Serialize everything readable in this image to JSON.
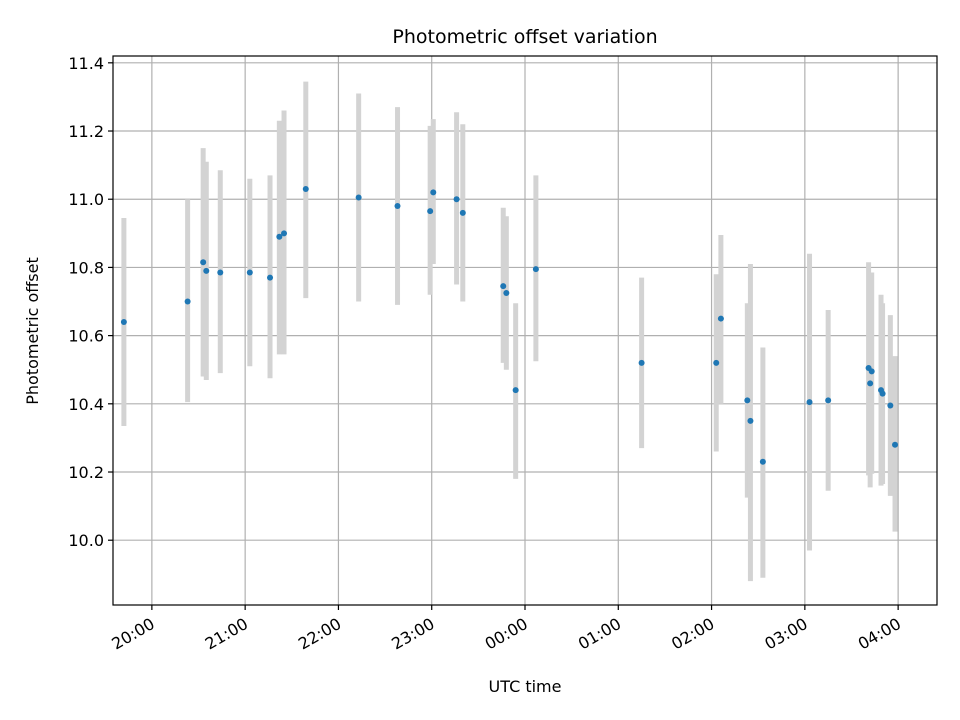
{
  "chart_data": {
    "type": "scatter",
    "title": "Photometric offset variation",
    "xlabel": "UTC time",
    "ylabel": "Photometric offset",
    "x_unit": "UTC time (hours, continuing past midnight)",
    "xlim": [
      "19:35",
      "04:25"
    ],
    "ylim": [
      9.81,
      11.42
    ],
    "x_ticks": [
      "20:00",
      "21:00",
      "22:00",
      "23:00",
      "00:00",
      "01:00",
      "02:00",
      "03:00",
      "04:00"
    ],
    "y_ticks": [
      "10.0",
      "10.2",
      "10.4",
      "10.6",
      "10.8",
      "11.0",
      "11.2",
      "11.4"
    ],
    "grid": true,
    "series": [
      {
        "marker_color": "#1f77b4",
        "errorbar_color": "#d3d3d3",
        "points": [
          {
            "x": "19:42",
            "y": 10.64,
            "err_low": 10.335,
            "err_high": 10.945
          },
          {
            "x": "20:23",
            "y": 10.7,
            "err_low": 10.405,
            "err_high": 11.0
          },
          {
            "x": "20:33",
            "y": 10.815,
            "err_low": 10.48,
            "err_high": 11.15
          },
          {
            "x": "20:35",
            "y": 10.79,
            "err_low": 10.47,
            "err_high": 11.11
          },
          {
            "x": "20:44",
            "y": 10.785,
            "err_low": 10.49,
            "err_high": 11.085
          },
          {
            "x": "21:03",
            "y": 10.785,
            "err_low": 10.51,
            "err_high": 11.06
          },
          {
            "x": "21:16",
            "y": 10.77,
            "err_low": 10.475,
            "err_high": 11.07
          },
          {
            "x": "21:22",
            "y": 10.89,
            "err_low": 10.545,
            "err_high": 11.23
          },
          {
            "x": "21:25",
            "y": 10.9,
            "err_low": 10.545,
            "err_high": 11.26
          },
          {
            "x": "21:39",
            "y": 11.03,
            "err_low": 10.71,
            "err_high": 11.345
          },
          {
            "x": "22:13",
            "y": 11.005,
            "err_low": 10.7,
            "err_high": 11.31
          },
          {
            "x": "22:38",
            "y": 10.98,
            "err_low": 10.69,
            "err_high": 11.27
          },
          {
            "x": "22:59",
            "y": 10.965,
            "err_low": 10.72,
            "err_high": 11.215
          },
          {
            "x": "23:01",
            "y": 11.02,
            "err_low": 10.81,
            "err_high": 11.235
          },
          {
            "x": "23:16",
            "y": 11.0,
            "err_low": 10.75,
            "err_high": 11.255
          },
          {
            "x": "23:20",
            "y": 10.96,
            "err_low": 10.7,
            "err_high": 11.22
          },
          {
            "x": "23:46",
            "y": 10.745,
            "err_low": 10.52,
            "err_high": 10.975
          },
          {
            "x": "23:48",
            "y": 10.725,
            "err_low": 10.5,
            "err_high": 10.95
          },
          {
            "x": "23:54",
            "y": 10.44,
            "err_low": 10.18,
            "err_high": 10.695
          },
          {
            "x": "00:07",
            "y": 10.795,
            "err_low": 10.525,
            "err_high": 11.07
          },
          {
            "x": "01:15",
            "y": 10.52,
            "err_low": 10.27,
            "err_high": 10.77
          },
          {
            "x": "02:03",
            "y": 10.52,
            "err_low": 10.26,
            "err_high": 10.78
          },
          {
            "x": "02:06",
            "y": 10.65,
            "err_low": 10.4,
            "err_high": 10.895
          },
          {
            "x": "02:23",
            "y": 10.41,
            "err_low": 10.125,
            "err_high": 10.695
          },
          {
            "x": "02:25",
            "y": 10.35,
            "err_low": 9.88,
            "err_high": 10.81
          },
          {
            "x": "02:33",
            "y": 10.23,
            "err_low": 9.89,
            "err_high": 10.565
          },
          {
            "x": "03:03",
            "y": 10.405,
            "err_low": 9.97,
            "err_high": 10.84
          },
          {
            "x": "03:15",
            "y": 10.41,
            "err_low": 10.145,
            "err_high": 10.675
          },
          {
            "x": "03:41",
            "y": 10.505,
            "err_low": 10.19,
            "err_high": 10.815
          },
          {
            "x": "03:43",
            "y": 10.495,
            "err_low": 10.195,
            "err_high": 10.785
          },
          {
            "x": "03:42",
            "y": 10.46,
            "err_low": 10.155,
            "err_high": 10.765
          },
          {
            "x": "03:49",
            "y": 10.44,
            "err_low": 10.16,
            "err_high": 10.72
          },
          {
            "x": "03:50",
            "y": 10.43,
            "err_low": 10.165,
            "err_high": 10.695
          },
          {
            "x": "03:55",
            "y": 10.395,
            "err_low": 10.13,
            "err_high": 10.66
          },
          {
            "x": "03:58",
            "y": 10.28,
            "err_low": 10.025,
            "err_high": 10.54
          }
        ]
      }
    ]
  }
}
